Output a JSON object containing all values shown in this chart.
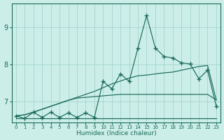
{
  "xlabel": "Humidex (Indice chaleur)",
  "bg_color": "#cceee8",
  "grid_color": "#a8d8d0",
  "line_color": "#1a6b58",
  "x_ticks": [
    0,
    1,
    2,
    3,
    4,
    5,
    6,
    7,
    8,
    9,
    10,
    11,
    12,
    13,
    14,
    15,
    16,
    17,
    18,
    19,
    20,
    21,
    22,
    23
  ],
  "y_ticks": [
    7,
    8,
    9
  ],
  "xlim": [
    -0.5,
    23.5
  ],
  "ylim": [
    6.45,
    9.65
  ],
  "main_y": [
    6.62,
    6.55,
    6.72,
    6.58,
    6.72,
    6.58,
    6.7,
    6.58,
    6.7,
    6.58,
    7.55,
    7.35,
    7.75,
    7.55,
    8.45,
    9.32,
    8.45,
    8.22,
    8.18,
    8.05,
    8.02,
    7.62,
    7.85,
    6.88
  ],
  "diag_y": [
    6.62,
    6.65,
    6.72,
    6.8,
    6.88,
    6.96,
    7.04,
    7.12,
    7.2,
    7.28,
    7.38,
    7.48,
    7.56,
    7.64,
    7.7,
    7.72,
    7.75,
    7.78,
    7.8,
    7.85,
    7.9,
    7.95,
    7.98,
    7.05
  ],
  "flat_upper_y": [
    6.62,
    6.65,
    6.72,
    6.8,
    6.88,
    6.96,
    7.04,
    7.1,
    7.12,
    7.14,
    7.16,
    7.18,
    7.2,
    7.2,
    7.2,
    7.2,
    7.2,
    7.2,
    7.2,
    7.2,
    7.2,
    7.2,
    7.2,
    7.05
  ],
  "flat_lower_y": [
    6.55,
    6.55,
    6.55,
    6.55,
    6.55,
    6.55,
    6.55,
    6.55,
    6.55,
    6.55,
    6.55,
    6.55,
    6.55,
    6.55,
    6.55,
    6.55,
    6.55,
    6.55,
    6.55,
    6.55,
    6.55,
    6.55,
    6.55,
    6.55
  ]
}
